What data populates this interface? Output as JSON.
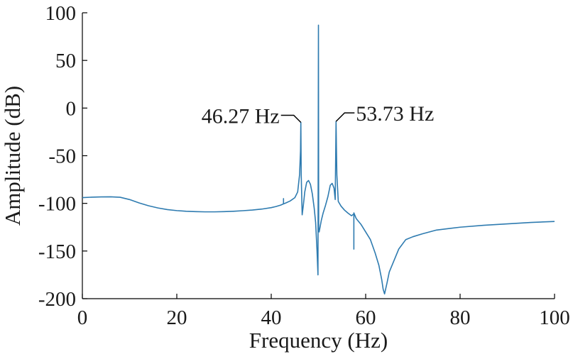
{
  "chart_data": {
    "type": "line",
    "title": "",
    "xlabel": "Frequency (Hz)",
    "ylabel": "Amplitude (dB)",
    "xlim": [
      0,
      100
    ],
    "ylim": [
      -200,
      100
    ],
    "xticks": [
      0,
      20,
      40,
      60,
      80,
      100
    ],
    "yticks": [
      100,
      50,
      0,
      -50,
      -100,
      -150,
      -200
    ],
    "grid": false,
    "line_color": "#2e7bb0",
    "series": [
      {
        "x": [
          0,
          2,
          4,
          6,
          8,
          10,
          12,
          14,
          16,
          18,
          20,
          22,
          24,
          26,
          28,
          30,
          32,
          34,
          36,
          38,
          40,
          41,
          42,
          42.6,
          42.6,
          42.6,
          43,
          44,
          45,
          45.6,
          46.0,
          46.2,
          46.27,
          46.35,
          46.55,
          46.8,
          47.1,
          47.5,
          47.9,
          48.3,
          48.7,
          49.1,
          49.4,
          49.7,
          49.9,
          50.0,
          50.05,
          50.15,
          50.3,
          50.6,
          51.0,
          51.5,
          52.0,
          52.5,
          52.9,
          53.3,
          53.55,
          53.73,
          53.8,
          53.9,
          54.2,
          54.8,
          55.5,
          56.2,
          57.0,
          57.5,
          57.5,
          57.5,
          58.0,
          59,
          60,
          61,
          62,
          62.8,
          63.4,
          63.7,
          64.0,
          64.5,
          65,
          66,
          67,
          68.5,
          70,
          72,
          75,
          80,
          85,
          90,
          95,
          100
        ],
        "values": [
          -94,
          -93.5,
          -93.2,
          -93.1,
          -93.6,
          -96,
          -99.5,
          -102.5,
          -104.8,
          -106.5,
          -107.6,
          -108.3,
          -108.7,
          -108.9,
          -108.9,
          -108.7,
          -108.3,
          -107.7,
          -107,
          -106,
          -104.5,
          -103.3,
          -101.8,
          -100.5,
          -95,
          -100.5,
          -99.8,
          -97.5,
          -94,
          -88,
          -70,
          -45,
          -15,
          -70,
          -112,
          -102,
          -88,
          -78,
          -76,
          -80,
          -90,
          -105,
          -120,
          -150,
          -175,
          87,
          -128,
          -130,
          -126,
          -118,
          -110,
          -102,
          -93,
          -81,
          -79,
          -84,
          -96,
          -14,
          -40,
          -70,
          -98,
          -103,
          -107,
          -110,
          -113,
          -111,
          -148,
          -110,
          -116,
          -122,
          -130,
          -138,
          -152,
          -165,
          -180,
          -190,
          -195,
          -184,
          -172,
          -160,
          -148,
          -138,
          -135,
          -132,
          -128,
          -125,
          -123,
          -121.5,
          -120,
          -119
        ]
      }
    ],
    "annotations": [
      {
        "text": "46.27 Hz",
        "x": 46.27,
        "y": -15
      },
      {
        "text": "53.73 Hz",
        "x": 53.73,
        "y": -14
      }
    ]
  }
}
